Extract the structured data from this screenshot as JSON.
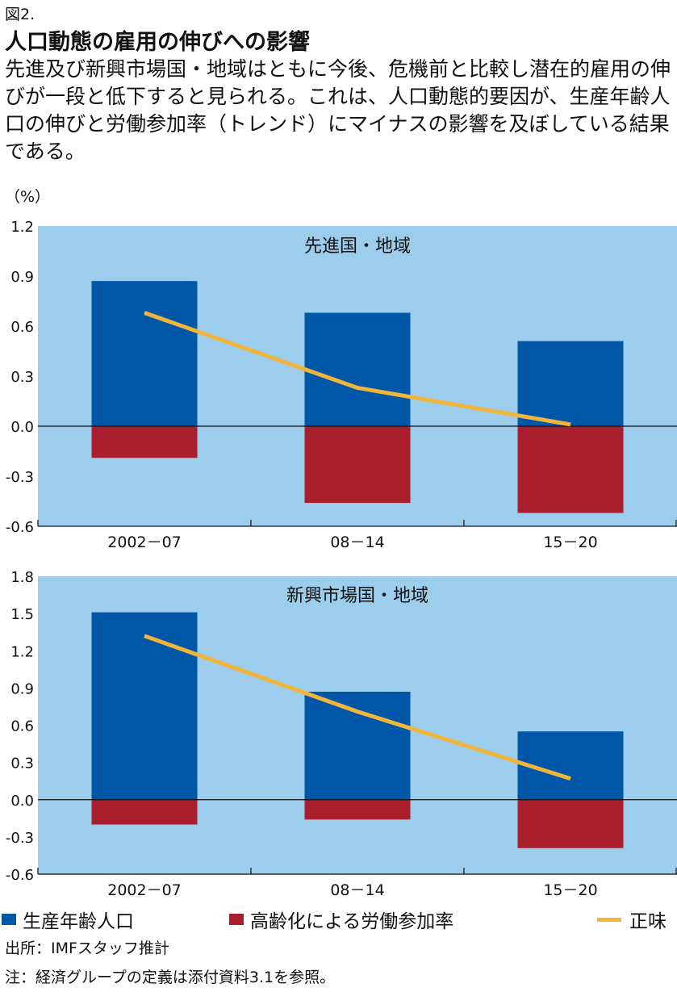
{
  "figure": {
    "number": "図2.",
    "title": "人口動態の雇用の伸びへの影響",
    "subtitle": "先進及び新興市場国・地域はともに今後、危機前と比較し潜在的雇用の伸びが一段と低下すると見られる。これは、人口動態的要因が、生産年齢人口の伸びと労働参加率（トレンド）にマイナスの影響を及ぼしている結果である。",
    "unit": "（%）"
  },
  "colors": {
    "plot_background": "#9dcdec",
    "working_age": "#0057a8",
    "participation": "#a81e2d",
    "trend": "#f2b53c"
  },
  "chart_data": [
    {
      "type": "bar",
      "title": "先進国・地域",
      "categories": [
        "2002－07",
        "08－14",
        "15－20"
      ],
      "ylim": [
        -0.6,
        1.2
      ],
      "yticks": [
        "1.2",
        "0.9",
        "0.6",
        "0.3",
        "0.0",
        "-0.3",
        "-0.6"
      ],
      "series": [
        {
          "name": "生産年齢人口",
          "type": "bar",
          "values": [
            0.87,
            0.68,
            0.51
          ]
        },
        {
          "name": "高齢化による労働参加率",
          "type": "bar",
          "values": [
            -0.19,
            -0.46,
            -0.52
          ]
        },
        {
          "name": "正味",
          "type": "line",
          "values": [
            0.68,
            0.23,
            0.01
          ]
        }
      ]
    },
    {
      "type": "bar",
      "title": "新興市場国・地域",
      "categories": [
        "2002－07",
        "08－14",
        "15－20"
      ],
      "ylim": [
        -0.6,
        1.8
      ],
      "yticks": [
        "1.8",
        "1.5",
        "1.2",
        "0.9",
        "0.6",
        "0.3",
        "0.0",
        "-0.3",
        "-0.6"
      ],
      "series": [
        {
          "name": "生産年齢人口",
          "type": "bar",
          "values": [
            1.51,
            0.87,
            0.55
          ]
        },
        {
          "name": "高齢化による労働参加率",
          "type": "bar",
          "values": [
            -0.2,
            -0.16,
            -0.39
          ]
        },
        {
          "name": "正味",
          "type": "line",
          "values": [
            1.32,
            0.71,
            0.17
          ]
        }
      ]
    }
  ],
  "legend": {
    "working_age": "生産年齢人口",
    "participation": "高齢化による労働参加率",
    "net": "正味"
  },
  "source": "出所：IMFスタッフ推計",
  "note": "注：経済グループの定義は添付資料3.1を参照。"
}
